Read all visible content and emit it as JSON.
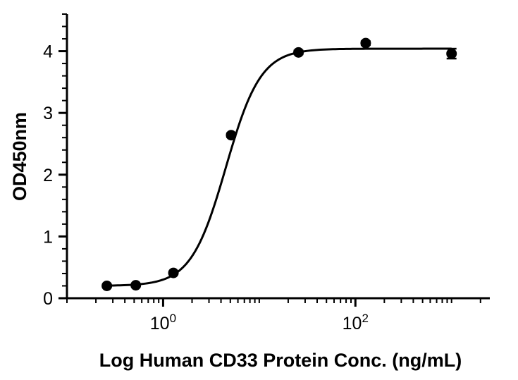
{
  "chart_data": {
    "type": "scatter",
    "xscale": "log",
    "xlabel": "Log Human CD33 Protein Conc. (ng/mL)",
    "ylabel": "OD450nm",
    "xlim": [
      0.1,
      2500
    ],
    "ylim": [
      0,
      4.6
    ],
    "xticks": [
      {
        "value": 1,
        "base": "10",
        "exp": "0"
      },
      {
        "value": 100,
        "base": "10",
        "exp": "2"
      }
    ],
    "yticks": [
      0,
      1,
      2,
      3,
      4
    ],
    "grid": false,
    "legend": "none",
    "series": [
      {
        "x": [
          0.26,
          0.52,
          1.28,
          5.1,
          25.6,
          128,
          1000
        ],
        "y": [
          0.2,
          0.21,
          0.41,
          2.64,
          3.98,
          4.13,
          3.96
        ],
        "error": [
          0.02,
          0.02,
          0.02,
          0.03,
          0.03,
          0.03,
          0.08
        ]
      }
    ],
    "fit_curve": {
      "type": "4PL",
      "bottom": 0.2,
      "top": 4.04,
      "ec50": 4.5,
      "hill": 2.4
    },
    "colors": {
      "axis": "#000000",
      "data": "#000000",
      "fit": "#000000"
    }
  }
}
